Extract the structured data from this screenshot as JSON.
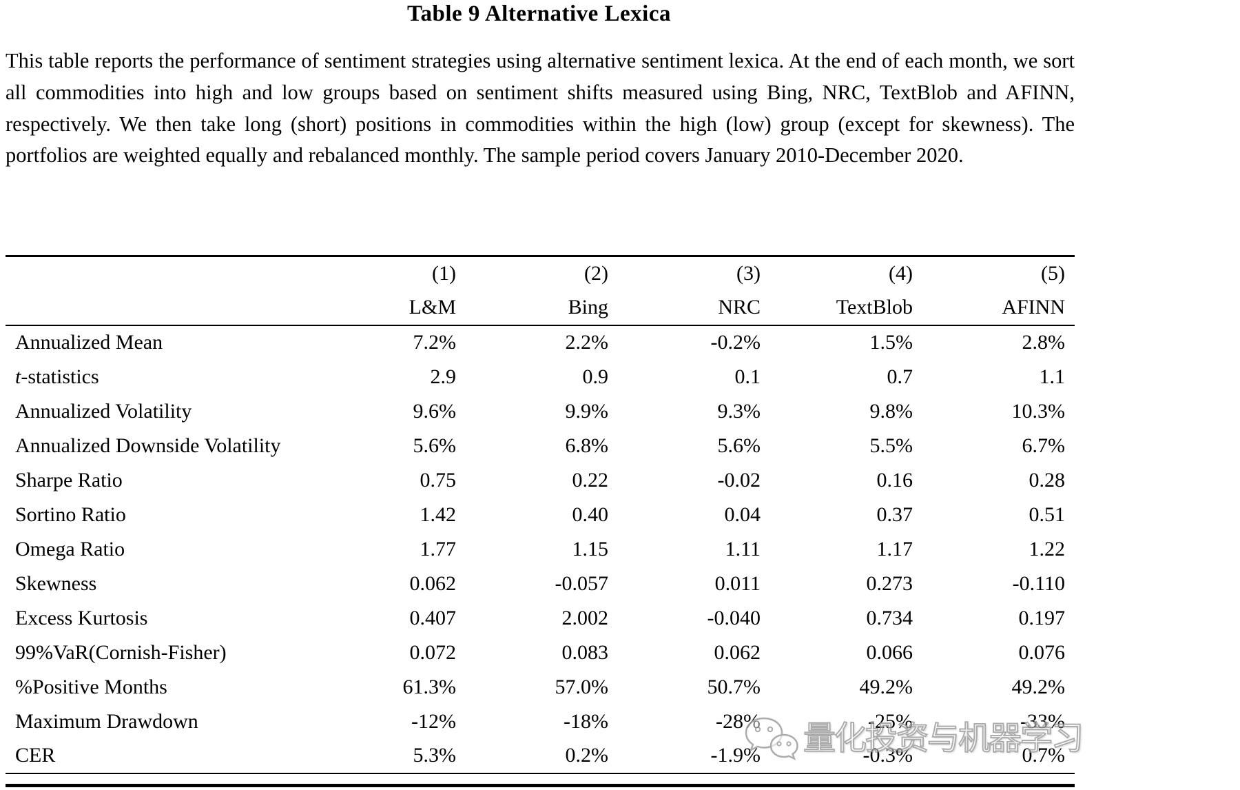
{
  "title": "Table 9 Alternative Lexica",
  "description": "This table reports the performance of sentiment strategies using alternative sentiment lexica. At the end of each month, we sort all commodities into high and low groups based on sentiment shifts measured using Bing, NRC, TextBlob and AFINN, respectively. We then take long (short) positions in commodities within the high (low) group (except for skewness). The portfolios are weighted equally and rebalanced monthly. The sample period covers January 2010-December 2020.",
  "table": {
    "col_numbers": [
      "(1)",
      "(2)",
      "(3)",
      "(4)",
      "(5)"
    ],
    "col_names": [
      "L&M",
      "Bing",
      "NRC",
      "TextBlob",
      "AFINN"
    ],
    "rows": [
      {
        "label": "Annualized Mean",
        "values": [
          "7.2%",
          "2.2%",
          "-0.2%",
          "1.5%",
          "2.8%"
        ]
      },
      {
        "label": "t-statistics",
        "italic_prefix_len": 1,
        "values": [
          "2.9",
          "0.9",
          "0.1",
          "0.7",
          "1.1"
        ]
      },
      {
        "label": "Annualized Volatility",
        "values": [
          "9.6%",
          "9.9%",
          "9.3%",
          "9.8%",
          "10.3%"
        ]
      },
      {
        "label": "Annualized Downside Volatility",
        "values": [
          "5.6%",
          "6.8%",
          "5.6%",
          "5.5%",
          "6.7%"
        ]
      },
      {
        "label": "Sharpe Ratio",
        "values": [
          "0.75",
          "0.22",
          "-0.02",
          "0.16",
          "0.28"
        ]
      },
      {
        "label": "Sortino Ratio",
        "values": [
          "1.42",
          "0.40",
          "0.04",
          "0.37",
          "0.51"
        ]
      },
      {
        "label": "Omega Ratio",
        "values": [
          "1.77",
          "1.15",
          "1.11",
          "1.17",
          "1.22"
        ]
      },
      {
        "label": "Skewness",
        "values": [
          "0.062",
          "-0.057",
          "0.011",
          "0.273",
          "-0.110"
        ]
      },
      {
        "label": "Excess Kurtosis",
        "values": [
          "0.407",
          "2.002",
          "-0.040",
          "0.734",
          "0.197"
        ]
      },
      {
        "label": "99%VaR(Cornish-Fisher)",
        "values": [
          "0.072",
          "0.083",
          "0.062",
          "0.066",
          "0.076"
        ]
      },
      {
        "label": "%Positive Months",
        "values": [
          "61.3%",
          "57.0%",
          "50.7%",
          "49.2%",
          "49.2%"
        ]
      },
      {
        "label": "Maximum Drawdown",
        "values": [
          "-12%",
          "-18%",
          "-28%",
          "-25%",
          "-33%"
        ]
      },
      {
        "label": "CER",
        "values": [
          "5.3%",
          "0.2%",
          "-1.9%",
          "-0.3%",
          "0.7%"
        ]
      }
    ]
  },
  "watermark": {
    "icon": "wechat-icon",
    "text": "量化投资与机器学习",
    "outline_color": "#9b9b9b"
  }
}
